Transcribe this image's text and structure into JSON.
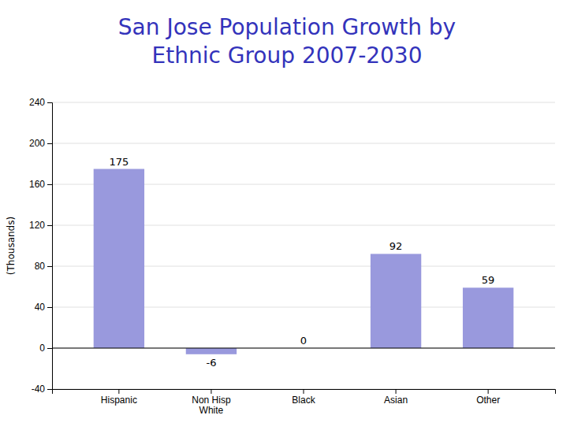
{
  "chart_data": {
    "type": "bar",
    "title": "San Jose Population Growth by\nEthnic Group 2007-2030",
    "categories": [
      "Hispanic",
      "Non Hisp\nWhite",
      "Black",
      "Asian",
      "Other"
    ],
    "values": [
      175,
      -6,
      0,
      92,
      59
    ],
    "color": "#9999dd",
    "ylabel": "(Thousands)",
    "ylim": [
      -40,
      240
    ],
    "yticks": [
      -40,
      0,
      40,
      80,
      120,
      160,
      200,
      240
    ],
    "grid": true,
    "data_labels": true
  }
}
